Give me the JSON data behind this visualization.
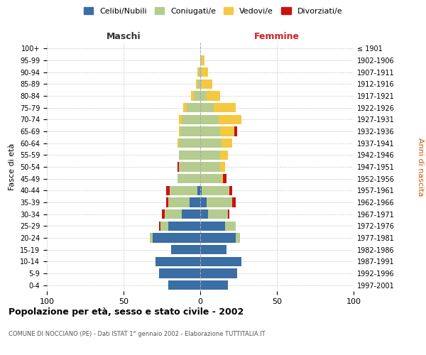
{
  "age_groups": [
    "0-4",
    "5-9",
    "10-14",
    "15-19",
    "20-24",
    "25-29",
    "30-34",
    "35-39",
    "40-44",
    "45-49",
    "50-54",
    "55-59",
    "60-64",
    "65-69",
    "70-74",
    "75-79",
    "80-84",
    "85-89",
    "90-94",
    "95-99",
    "100+"
  ],
  "birth_years": [
    "1997-2001",
    "1992-1996",
    "1987-1991",
    "1982-1986",
    "1977-1981",
    "1972-1976",
    "1967-1971",
    "1962-1966",
    "1957-1961",
    "1952-1956",
    "1947-1951",
    "1942-1946",
    "1937-1941",
    "1932-1936",
    "1927-1931",
    "1922-1926",
    "1917-1921",
    "1912-1916",
    "1907-1911",
    "1902-1906",
    "≤ 1901"
  ],
  "males": {
    "celibi": [
      21,
      27,
      29,
      19,
      31,
      21,
      12,
      7,
      2,
      0,
      0,
      0,
      0,
      0,
      0,
      0,
      0,
      0,
      0,
      0,
      0
    ],
    "coniugati": [
      0,
      0,
      0,
      0,
      2,
      5,
      11,
      14,
      18,
      15,
      14,
      14,
      14,
      13,
      12,
      9,
      4,
      2,
      1,
      0,
      0
    ],
    "vedovi": [
      0,
      0,
      0,
      0,
      0,
      0,
      0,
      0,
      0,
      0,
      0,
      0,
      1,
      1,
      2,
      2,
      2,
      1,
      1,
      0,
      0
    ],
    "divorziati": [
      0,
      0,
      0,
      0,
      0,
      1,
      2,
      1,
      2,
      0,
      1,
      0,
      0,
      0,
      0,
      0,
      0,
      0,
      0,
      0,
      0
    ]
  },
  "females": {
    "nubili": [
      18,
      24,
      27,
      17,
      23,
      16,
      5,
      4,
      1,
      0,
      0,
      0,
      0,
      0,
      0,
      0,
      0,
      0,
      0,
      0,
      0
    ],
    "coniugate": [
      0,
      0,
      0,
      0,
      3,
      7,
      13,
      17,
      18,
      14,
      13,
      13,
      14,
      13,
      12,
      9,
      4,
      1,
      1,
      1,
      0
    ],
    "vedove": [
      0,
      0,
      0,
      0,
      0,
      0,
      0,
      0,
      0,
      1,
      3,
      5,
      7,
      9,
      15,
      14,
      9,
      7,
      4,
      2,
      0
    ],
    "divorziate": [
      0,
      0,
      0,
      0,
      0,
      0,
      1,
      2,
      2,
      2,
      0,
      0,
      0,
      2,
      0,
      0,
      0,
      0,
      0,
      0,
      0
    ]
  },
  "colors": {
    "celibi": "#3a6ea5",
    "coniugati": "#b5cc8e",
    "vedovi": "#f5c842",
    "divorziati": "#cc1111"
  },
  "title": "Popolazione per età, sesso e stato civile - 2002",
  "subtitle": "COMUNE DI NOCCIANO (PE) - Dati ISTAT 1° gennaio 2002 - Elaborazione TUTTITALIA.IT",
  "ylabel_left": "Fasce di età",
  "ylabel_right": "Anni di nascita",
  "xlabel_left": "Maschi",
  "xlabel_right": "Femmine",
  "xlim": 100,
  "background_color": "#ffffff",
  "grid_color": "#cccccc"
}
